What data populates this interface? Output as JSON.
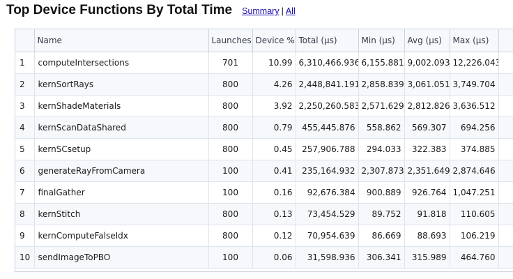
{
  "header": {
    "title": "Top Device Functions By Total Time",
    "summary_link": "Summary",
    "separator": "|",
    "all_link": "All"
  },
  "table": {
    "columns": [
      "",
      "Name",
      "Launches",
      "Device %",
      "Total (µs)",
      "Min (µs)",
      "Avg (µs)",
      "Max (µs)"
    ],
    "rows": [
      {
        "idx": "1",
        "name": "computeIntersections",
        "launches": "701",
        "device_pct": "10.99",
        "total": "6,310,466.936",
        "min": "6,155.881",
        "avg": "9,002.093",
        "max": "12,226.043"
      },
      {
        "idx": "2",
        "name": "kernSortRays",
        "launches": "800",
        "device_pct": "4.26",
        "total": "2,448,841.191",
        "min": "2,858.839",
        "avg": "3,061.051",
        "max": "3,749.704"
      },
      {
        "idx": "3",
        "name": "kernShadeMaterials",
        "launches": "800",
        "device_pct": "3.92",
        "total": "2,250,260.583",
        "min": "2,571.629",
        "avg": "2,812.826",
        "max": "3,636.512"
      },
      {
        "idx": "4",
        "name": "kernScanDataShared",
        "launches": "800",
        "device_pct": "0.79",
        "total": "455,445.876",
        "min": "558.862",
        "avg": "569.307",
        "max": "694.256"
      },
      {
        "idx": "5",
        "name": "kernSCsetup",
        "launches": "800",
        "device_pct": "0.45",
        "total": "257,906.788",
        "min": "294.033",
        "avg": "322.383",
        "max": "374.885"
      },
      {
        "idx": "6",
        "name": "generateRayFromCamera",
        "launches": "100",
        "device_pct": "0.41",
        "total": "235,164.932",
        "min": "2,307.873",
        "avg": "2,351.649",
        "max": "2,874.646"
      },
      {
        "idx": "7",
        "name": "finalGather",
        "launches": "100",
        "device_pct": "0.16",
        "total": "92,676.384",
        "min": "900.889",
        "avg": "926.764",
        "max": "1,047.251"
      },
      {
        "idx": "8",
        "name": "kernStitch",
        "launches": "800",
        "device_pct": "0.13",
        "total": "73,454.529",
        "min": "89.752",
        "avg": "91.818",
        "max": "110.605"
      },
      {
        "idx": "9",
        "name": "kernComputeFalseIdx",
        "launches": "800",
        "device_pct": "0.12",
        "total": "70,954.639",
        "min": "86.669",
        "avg": "88.693",
        "max": "106.219"
      },
      {
        "idx": "10",
        "name": "sendImageToPBO",
        "launches": "100",
        "device_pct": "0.06",
        "total": "31,598.936",
        "min": "306.341",
        "avg": "315.989",
        "max": "464.760"
      }
    ]
  }
}
